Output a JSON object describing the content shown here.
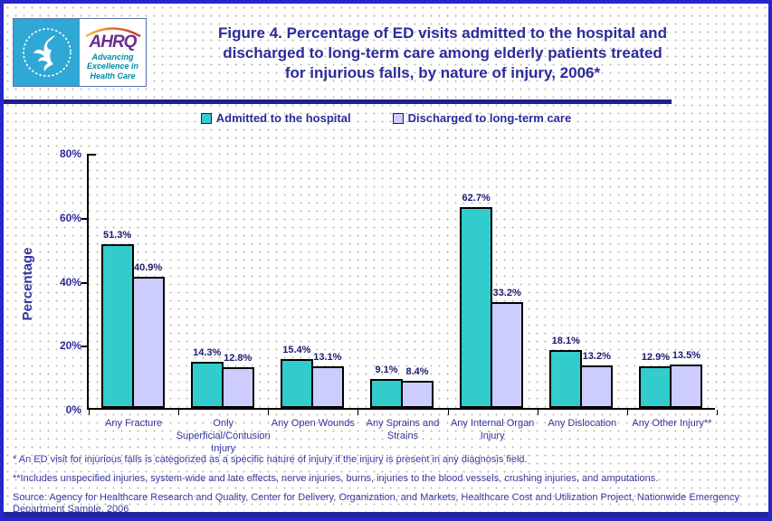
{
  "header": {
    "title_lines": [
      "Figure 4. Percentage of ED visits admitted to the hospital and",
      "discharged to long-term care among elderly patients treated",
      "for injurious falls, by nature of injury, 2006*"
    ],
    "logo": {
      "ahrq": "AHRQ",
      "tagline_lines": [
        "Advancing",
        "Excellence in",
        "Health Care"
      ]
    }
  },
  "legend": {
    "items": [
      {
        "label": "Admitted to the hospital",
        "color": "#33CCCC"
      },
      {
        "label": "Discharged to long-term care",
        "color": "#CCCCFF"
      }
    ]
  },
  "chart_data": {
    "type": "bar",
    "title": "Figure 4. Percentage of ED visits admitted to the hospital and discharged to long-term care among elderly patients treated for injurious falls, by nature of injury, 2006*",
    "categories": [
      "Any Fracture",
      "Only\nSuperficial/Contusion\nInjury",
      "Any Open Wounds",
      "Any Sprains and\nStrains",
      "Any Internal Organ\nInjury",
      "Any Dislocation",
      "Any Other Injury**"
    ],
    "series": [
      {
        "name": "Admitted to the hospital",
        "color": "#33CCCC",
        "values": [
          51.3,
          14.3,
          15.4,
          9.1,
          62.7,
          18.1,
          12.9
        ]
      },
      {
        "name": "Discharged to long-term care",
        "color": "#CCCCFF",
        "values": [
          40.9,
          12.8,
          13.1,
          8.4,
          33.2,
          13.2,
          13.5
        ]
      }
    ],
    "xlabel": "",
    "ylabel": "Percentage",
    "ylim": [
      0,
      80
    ],
    "yticks": [
      {
        "value": 0,
        "label": "0%"
      },
      {
        "value": 20,
        "label": "20%"
      },
      {
        "value": 40,
        "label": "40%"
      },
      {
        "value": 60,
        "label": "60%"
      },
      {
        "value": 80,
        "label": "80%"
      }
    ],
    "grid": false,
    "legend_position": "top",
    "data_labels": true
  },
  "footnotes": [
    "* An ED visit for injurious falls is categorized as a specific nature of injury if the injury is present in any diagnosis field.",
    "**Includes unspecified injuries, system-wide and late effects, nerve injuries, burns, injuries to the blood vessels, crushing injuries, and amputations.",
    "Source: Agency for Healthcare Research and Quality, Center for Delivery, Organization, and Markets, Healthcare Cost and Utilization Project, Nationwide Emergency Department Sample, 2006"
  ],
  "colors": {
    "page_border": "#2626C9",
    "divider": "#1F1F8F",
    "title_text": "#2B2B9B",
    "bar_admitted": "#33CCCC",
    "bar_discharged": "#CCCCFF"
  }
}
